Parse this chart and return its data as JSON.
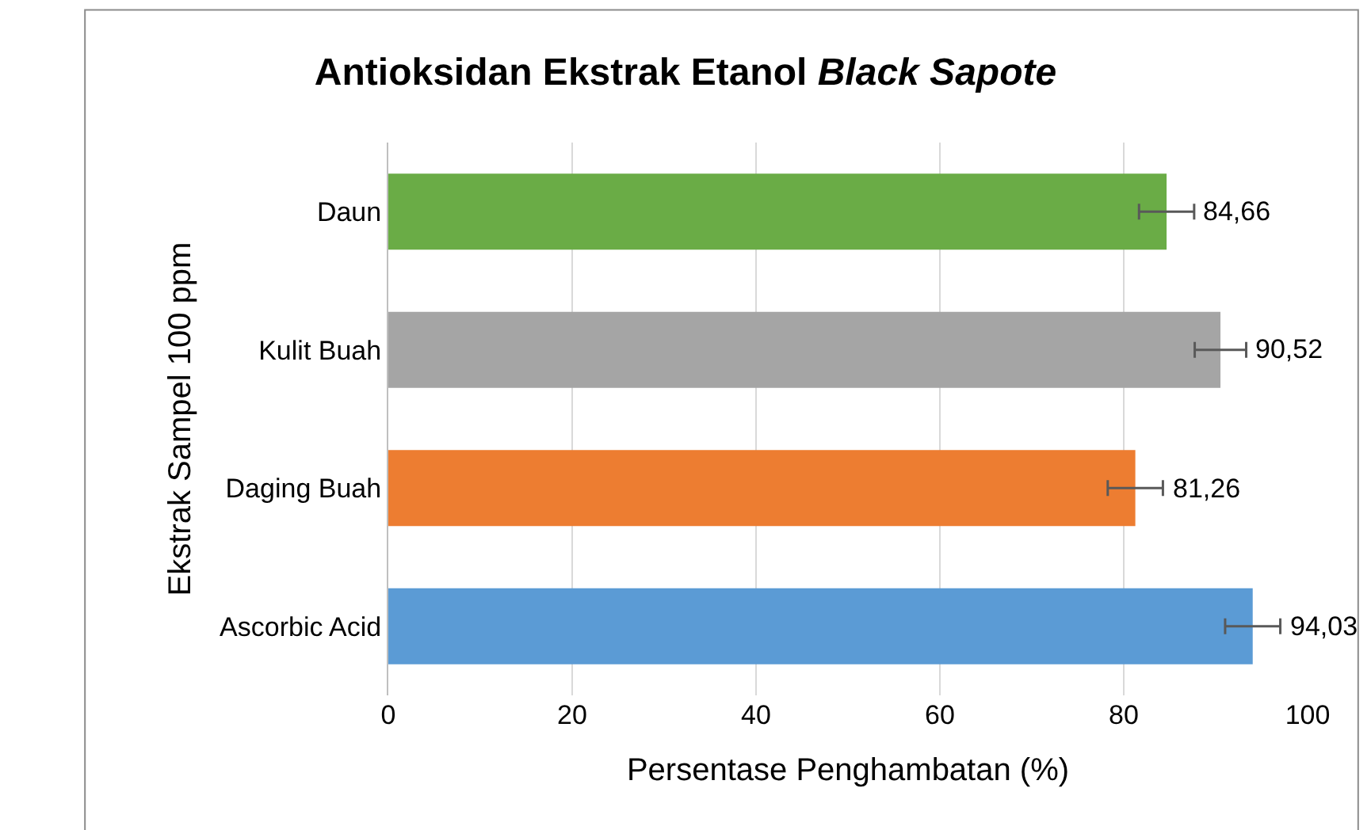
{
  "chart_data": {
    "type": "bar",
    "orientation": "horizontal",
    "title": "Antioksidan Ekstrak Etanol $^{}$Black Sapote",
    "xlabel": "Persentase Penghambatan (%)",
    "ylabel": "Ekstrak Sampel 100 ppm",
    "categories": [
      "Daun",
      "Kulit Buah",
      "Daging Buah",
      "Ascorbic Acid"
    ],
    "values": [
      84.66,
      90.52,
      81.26,
      94.03
    ],
    "colors": [
      "#6aac46",
      "#a5a5a5",
      "#ed7d31",
      "#5b9bd5"
    ],
    "errors": [
      3,
      2.8,
      3,
      3
    ],
    "value_labels": [
      "84,66",
      "90,52",
      "81,26",
      "94,03"
    ],
    "xlim": [
      0,
      100
    ],
    "xticks": [
      0,
      20,
      40,
      60,
      80,
      100
    ],
    "grid": "x"
  }
}
